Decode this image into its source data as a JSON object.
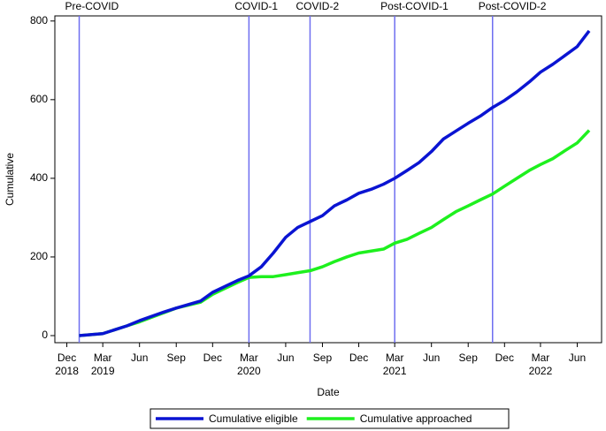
{
  "chart_data": {
    "type": "line",
    "y_label": "Cumulative",
    "x_label": "Date",
    "x": [
      "2019-01",
      "2019-03",
      "2019-05",
      "2019-06",
      "2019-08",
      "2019-09",
      "2019-11",
      "2019-12",
      "2020-01",
      "2020-02",
      "2020-03",
      "2020-04",
      "2020-05",
      "2020-06",
      "2020-07",
      "2020-08",
      "2020-09",
      "2020-10",
      "2020-11",
      "2020-12",
      "2021-01",
      "2021-02",
      "2021-03",
      "2021-04",
      "2021-05",
      "2021-06",
      "2021-07",
      "2021-08",
      "2021-09",
      "2021-10",
      "2021-11",
      "2021-12",
      "2022-01",
      "2022-02",
      "2022-03",
      "2022-04",
      "2022-05",
      "2022-06",
      "2022-07"
    ],
    "series": [
      {
        "name": "Cumulative eligible",
        "color": "#0a14d2",
        "values": [
          0,
          5,
          25,
          38,
          60,
          70,
          88,
          110,
          125,
          140,
          152,
          175,
          210,
          250,
          275,
          290,
          305,
          330,
          345,
          362,
          372,
          385,
          400,
          420,
          440,
          468,
          500,
          520,
          540,
          558,
          580,
          598,
          620,
          645,
          670,
          690,
          712,
          735,
          775
        ]
      },
      {
        "name": "Cumulative approached",
        "color": "#1ef01e",
        "values": [
          0,
          5,
          25,
          35,
          58,
          70,
          85,
          105,
          120,
          135,
          148,
          150,
          150,
          155,
          160,
          165,
          175,
          188,
          200,
          210,
          215,
          220,
          235,
          245,
          260,
          275,
          295,
          315,
          330,
          345,
          360,
          380,
          400,
          420,
          435,
          450,
          470,
          490,
          522
        ]
      }
    ],
    "events": [
      {
        "label": "Pre-COVID",
        "date": "2019-01"
      },
      {
        "label": "COVID-1",
        "date": "2020-03"
      },
      {
        "label": "COVID-2",
        "date": "2020-08"
      },
      {
        "label": "Post-COVID-1",
        "date": "2021-03"
      },
      {
        "label": "Post-COVID-2",
        "date": "2021-11"
      }
    ],
    "event_color": "#6e6ef0",
    "xlim": [
      "2018-11",
      "2022-08"
    ],
    "xticks": [
      {
        "value": "2018-12",
        "label": "Dec",
        "year": "2018"
      },
      {
        "value": "2019-03",
        "label": "Mar",
        "year": "2019"
      },
      {
        "value": "2019-06",
        "label": "Jun"
      },
      {
        "value": "2019-09",
        "label": "Sep"
      },
      {
        "value": "2019-12",
        "label": "Dec"
      },
      {
        "value": "2020-03",
        "label": "Mar",
        "year": "2020"
      },
      {
        "value": "2020-06",
        "label": "Jun"
      },
      {
        "value": "2020-09",
        "label": "Sep"
      },
      {
        "value": "2020-12",
        "label": "Dec"
      },
      {
        "value": "2021-03",
        "label": "Mar",
        "year": "2021"
      },
      {
        "value": "2021-06",
        "label": "Jun"
      },
      {
        "value": "2021-09",
        "label": "Sep"
      },
      {
        "value": "2021-12",
        "label": "Dec"
      },
      {
        "value": "2022-03",
        "label": "Mar",
        "year": "2022"
      },
      {
        "value": "2022-06",
        "label": "Jun"
      }
    ],
    "ylim": [
      -18,
      813
    ],
    "yticks": [
      0,
      200,
      400,
      600,
      800
    ],
    "legend": "bottom"
  }
}
